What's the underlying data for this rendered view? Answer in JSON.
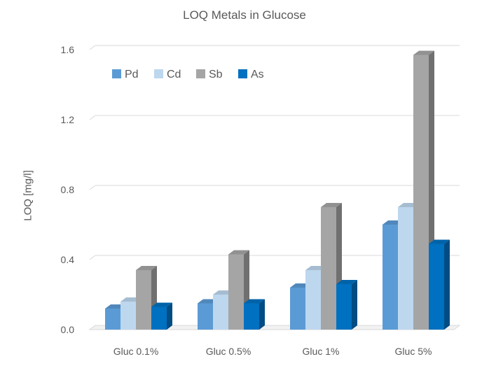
{
  "chart_data": {
    "type": "bar",
    "title": "LOQ Metals in Glucose",
    "ylabel": "LOQ [mg/l]",
    "xlabel": "",
    "categories": [
      "Gluc 0.1%",
      "Gluc 0.5%",
      "Gluc 1%",
      "Gluc 5%"
    ],
    "series": [
      {
        "name": "Pd",
        "color": "#5B9BD5",
        "values": [
          0.12,
          0.15,
          0.24,
          0.6
        ]
      },
      {
        "name": "Cd",
        "color": "#BDD7EE",
        "values": [
          0.16,
          0.2,
          0.34,
          0.7
        ]
      },
      {
        "name": "Sb",
        "color": "#A5A5A5",
        "values": [
          0.34,
          0.43,
          0.7,
          1.57
        ]
      },
      {
        "name": "As",
        "color": "#0070C0",
        "values": [
          0.13,
          0.15,
          0.26,
          0.49
        ]
      }
    ],
    "ylim": [
      0.0,
      1.6
    ],
    "yticks": [
      "0.0",
      "0.4",
      "0.8",
      "1.2",
      "1.6"
    ],
    "grid": true,
    "legend_position": "top-left",
    "style": "3d-column"
  }
}
